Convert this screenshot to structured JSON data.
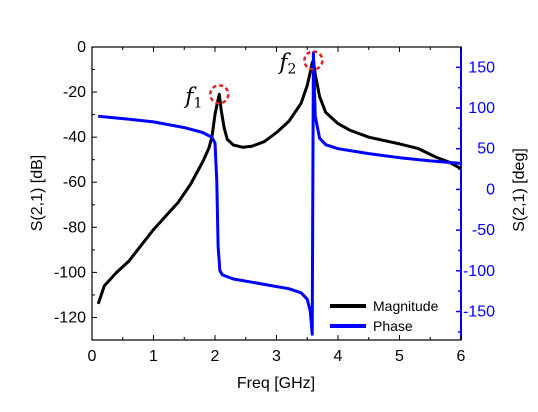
{
  "chart_data": {
    "type": "line",
    "xlabel": "Freq [GHz]",
    "ylabel": "S(2,1) [dB]",
    "y2label": "S(2,1) [deg]",
    "xlim": [
      0,
      6
    ],
    "ylim": [
      -130,
      0
    ],
    "y2lim": [
      -185,
      175
    ],
    "x_ticks": [
      "0",
      "1",
      "2",
      "3",
      "4",
      "5",
      "6"
    ],
    "y_ticks": [
      "0",
      "-20",
      "-40",
      "-60",
      "-80",
      "-100",
      "-120"
    ],
    "y2_ticks": [
      "150",
      "100",
      "50",
      "0",
      "-50",
      "-100",
      "-150"
    ],
    "legend": {
      "placement": "bottom-right"
    },
    "annotations": [
      {
        "label": "f",
        "subscript": "1",
        "x": 2.07,
        "y": -21
      },
      {
        "label": "f",
        "subscript": "2",
        "x": 3.6,
        "y": -6
      }
    ],
    "series": [
      {
        "name": "Magnitude",
        "axis": "left",
        "color": "#000000",
        "points": [
          [
            0.1,
            -114
          ],
          [
            0.2,
            -106
          ],
          [
            0.4,
            -100
          ],
          [
            0.6,
            -95
          ],
          [
            0.8,
            -88
          ],
          [
            1.0,
            -81
          ],
          [
            1.2,
            -75
          ],
          [
            1.4,
            -69
          ],
          [
            1.6,
            -61
          ],
          [
            1.8,
            -51
          ],
          [
            1.9,
            -45
          ],
          [
            1.95,
            -40
          ],
          [
            2.0,
            -30
          ],
          [
            2.03,
            -26
          ],
          [
            2.07,
            -21
          ],
          [
            2.1,
            -28
          ],
          [
            2.15,
            -36
          ],
          [
            2.2,
            -41
          ],
          [
            2.3,
            -43.5
          ],
          [
            2.45,
            -44.5
          ],
          [
            2.6,
            -44
          ],
          [
            2.8,
            -42
          ],
          [
            3.0,
            -38
          ],
          [
            3.2,
            -33
          ],
          [
            3.4,
            -25
          ],
          [
            3.5,
            -17
          ],
          [
            3.55,
            -11
          ],
          [
            3.58,
            -7
          ],
          [
            3.6,
            -6
          ],
          [
            3.63,
            -12
          ],
          [
            3.7,
            -22
          ],
          [
            3.8,
            -29
          ],
          [
            4.0,
            -34
          ],
          [
            4.2,
            -37
          ],
          [
            4.5,
            -40
          ],
          [
            5.0,
            -43
          ],
          [
            5.3,
            -45
          ],
          [
            5.6,
            -49
          ],
          [
            5.8,
            -51
          ],
          [
            6.0,
            -54
          ]
        ]
      },
      {
        "name": "Phase",
        "axis": "right",
        "color": "#0000ff",
        "points": [
          [
            0.1,
            90
          ],
          [
            0.5,
            87
          ],
          [
            1.0,
            83
          ],
          [
            1.5,
            76
          ],
          [
            1.8,
            70
          ],
          [
            1.95,
            64
          ],
          [
            2.0,
            57
          ],
          [
            2.03,
            10
          ],
          [
            2.05,
            -70
          ],
          [
            2.08,
            -100
          ],
          [
            2.12,
            -105
          ],
          [
            2.3,
            -110
          ],
          [
            2.6,
            -114
          ],
          [
            2.9,
            -118
          ],
          [
            3.2,
            -122
          ],
          [
            3.4,
            -127
          ],
          [
            3.5,
            -135
          ],
          [
            3.55,
            -150
          ],
          [
            3.58,
            -178
          ],
          [
            3.6,
            168
          ],
          [
            3.63,
            90
          ],
          [
            3.7,
            63
          ],
          [
            3.8,
            55
          ],
          [
            4.0,
            50
          ],
          [
            4.5,
            44
          ],
          [
            5.0,
            39
          ],
          [
            5.5,
            35
          ],
          [
            6.0,
            32
          ]
        ]
      }
    ]
  }
}
